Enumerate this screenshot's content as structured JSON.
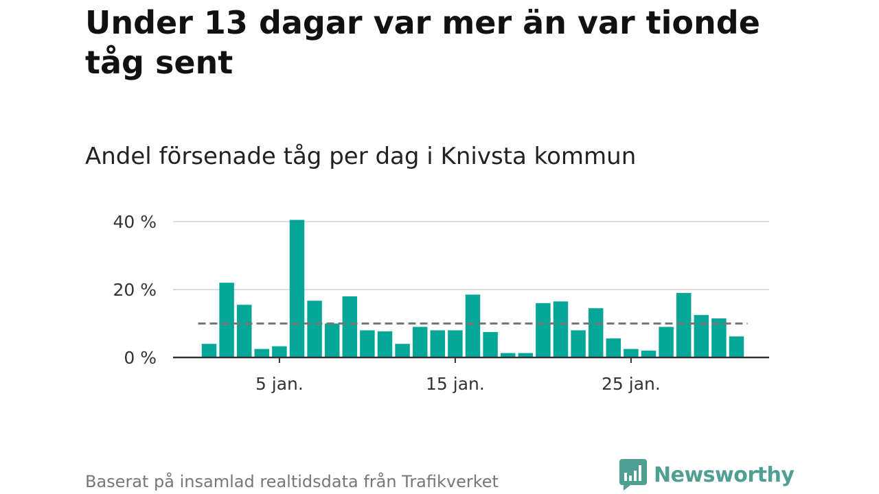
{
  "title": "Under 13 dagar var mer än var tionde tåg sent",
  "subtitle": "Andel försenade tåg per dag i Knivsta kommun",
  "source": "Baserat på insamlad realtidsdata från Trafikverket",
  "logo": {
    "text": "Newsworthy",
    "icon": "newsworthy-logo-icon",
    "color": "#4f9f93"
  },
  "colors": {
    "bar": "#04a697",
    "reference_line": "#777777",
    "gridline": "#dddddd",
    "axis": "#333333"
  },
  "chart_data": {
    "type": "bar",
    "categories": [
      "1 jan.",
      "2 jan.",
      "3 jan.",
      "4 jan.",
      "5 jan.",
      "6 jan.",
      "7 jan.",
      "8 jan.",
      "9 jan.",
      "10 jan.",
      "11 jan.",
      "12 jan.",
      "13 jan.",
      "14 jan.",
      "15 jan.",
      "16 jan.",
      "17 jan.",
      "18 jan.",
      "19 jan.",
      "20 jan.",
      "21 jan.",
      "22 jan.",
      "23 jan.",
      "24 jan.",
      "25 jan.",
      "26 jan.",
      "27 jan.",
      "28 jan.",
      "29 jan.",
      "30 jan.",
      "31 jan."
    ],
    "values": [
      4,
      22,
      15.5,
      2.5,
      3.3,
      40.5,
      16.7,
      10,
      18,
      8,
      7.7,
      4,
      9,
      8,
      8,
      18.5,
      7.5,
      1.3,
      1.3,
      16,
      16.5,
      8,
      14.5,
      5.6,
      2.5,
      2,
      9,
      19,
      12.5,
      11.5,
      6.2
    ],
    "ylim": [
      0,
      40
    ],
    "yticks": [
      {
        "value": 0,
        "label": "0 %"
      },
      {
        "value": 20,
        "label": "20 %"
      },
      {
        "value": 40,
        "label": "40 %"
      }
    ],
    "xticks": [
      {
        "index": 4,
        "label": "5 jan."
      },
      {
        "index": 14,
        "label": "15 jan."
      },
      {
        "index": 24,
        "label": "25 jan."
      }
    ],
    "reference_line": 10,
    "grid": true,
    "xlabel": "",
    "ylabel": ""
  }
}
